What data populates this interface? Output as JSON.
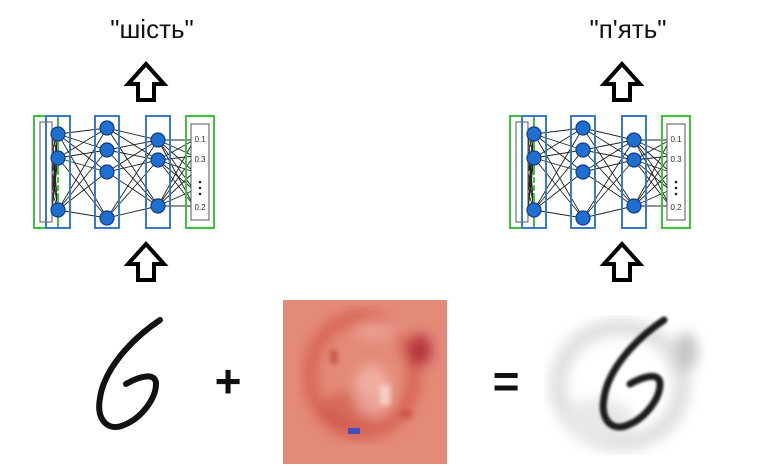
{
  "diagram": {
    "left_network": {
      "output_label": "\"шість\""
    },
    "right_network": {
      "output_label": "\"п'ять\""
    },
    "output_values": [
      "0.1",
      "0.3",
      "0.2"
    ],
    "operators": {
      "plus": "+",
      "equals": "="
    }
  }
}
